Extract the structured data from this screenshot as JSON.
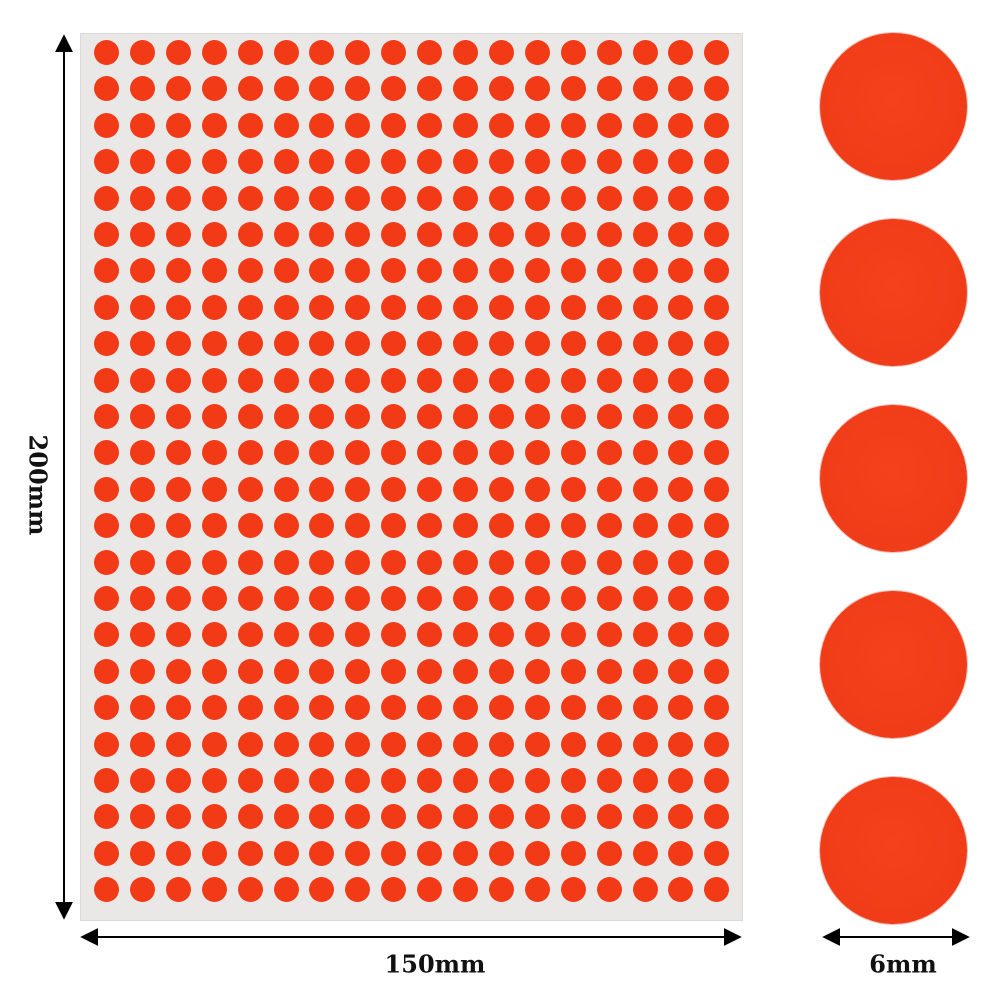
{
  "dimensions": {
    "height_label": "200mm",
    "width_label": "150mm",
    "dot_diameter_label": "6mm"
  },
  "sheet": {
    "rows": 24,
    "columns": 18,
    "dot_color": "#f23a17",
    "backing_color": "#e9e8e6"
  },
  "detail_dots": {
    "count": 5,
    "color": "#f03c18"
  }
}
